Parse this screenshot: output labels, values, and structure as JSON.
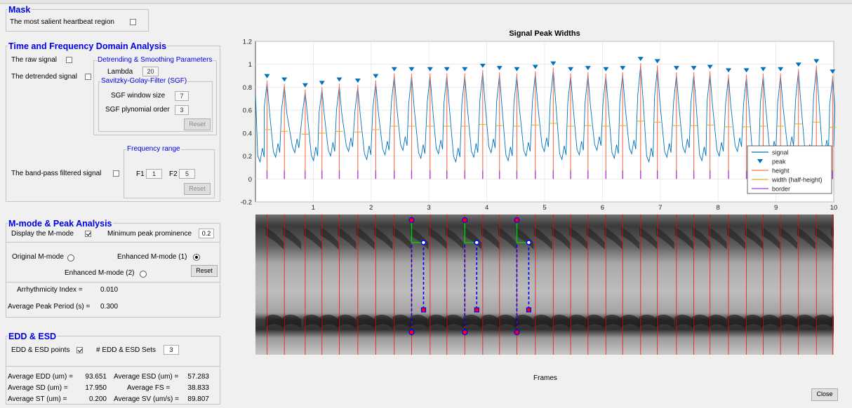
{
  "mask": {
    "title": "Mask",
    "salient_label": "The most salient heartbeat region",
    "salient_checked": false
  },
  "tfa": {
    "title": "Time and Frequency Domain Analysis",
    "raw_label": "The raw signal",
    "raw_checked": false,
    "detrended_label": "The detrended signal",
    "detrended_checked": false,
    "dsp": {
      "title": "Detrending & Smoothing Parameters",
      "lambda_label": "Lambda",
      "lambda_value": "20",
      "sgf": {
        "title": "Savitzky-Golay-Filter (SGF)",
        "window_label": "SGF window size",
        "window_value": "7",
        "order_label": "SGF plynomial order",
        "order_value": "3",
        "reset_label": "Reset"
      }
    },
    "bandpass_label": "The band-pass filtered signal",
    "bandpass_checked": false,
    "freq": {
      "title": "Frequency range",
      "f1_label": "F1",
      "f1_value": "1",
      "f2_label": "F2",
      "f2_value": "5",
      "reset_label": "Reset"
    }
  },
  "mmode": {
    "title": "M-mode & Peak Analysis",
    "display_label": "Display the M-mode",
    "display_checked": true,
    "prominence_label": "Minimum peak prominence",
    "prominence_value": "0.2",
    "original_label": "Original M-mode",
    "enhanced1_label": "Enhanced M-mode (1)",
    "enhanced2_label": "Enhanced M-mode (2)",
    "selected": "enhanced1",
    "reset_label": "Reset",
    "arrhythmicity_label": "Arrhythmicity Index =",
    "arrhythmicity_value": "0.010",
    "period_label": "Average Peak Period (s) =",
    "period_value": "0.300"
  },
  "edd": {
    "title": "EDD & ESD",
    "points_label": "EDD & ESD points",
    "points_checked": true,
    "sets_label": "# EDD & ESD Sets",
    "sets_value": "3",
    "stats": [
      {
        "label": "Average EDD (um) =",
        "value": "93.651"
      },
      {
        "label": "Average ESD (um) =",
        "value": "57.283"
      },
      {
        "label": "Average SD (um) =",
        "value": "17.950"
      },
      {
        "label": "Average FS =",
        "value": "38.833"
      },
      {
        "label": "Average ST (um) =",
        "value": "0.200"
      },
      {
        "label": "Average SV (um/s) =",
        "value": "89.807"
      }
    ]
  },
  "mmode_image": {
    "xlabel": "Frames",
    "marker_color": "#ff0000",
    "edd_line_color": "#0000ff",
    "esd_line_color": "#00cc00"
  },
  "close_label": "Close",
  "chart_data": {
    "type": "line",
    "title": "Signal Peak Widths",
    "xlabel": "",
    "ylabel": "",
    "xlim": [
      0,
      10
    ],
    "ylim": [
      -0.2,
      1.2
    ],
    "xticks": [
      1,
      2,
      3,
      4,
      5,
      6,
      7,
      8,
      9,
      10
    ],
    "yticks": [
      -0.2,
      0,
      0.2,
      0.4,
      0.6,
      0.8,
      1,
      1.2
    ],
    "grid": true,
    "legend_position": "bottom-right",
    "legend": [
      {
        "label": "signal",
        "color": "#0072bd",
        "kind": "line"
      },
      {
        "label": "peak",
        "color": "#0072bd",
        "kind": "triangle"
      },
      {
        "label": "height",
        "color": "#ff6b4a",
        "kind": "line"
      },
      {
        "label": "width (half-height)",
        "color": "#edb120",
        "kind": "line"
      },
      {
        "label": "border",
        "color": "#a23cd4",
        "kind": "line"
      }
    ],
    "peaks": {
      "x": [
        0.2,
        0.5,
        0.86,
        1.15,
        1.45,
        1.77,
        2.08,
        2.4,
        2.7,
        3.02,
        3.31,
        3.62,
        3.93,
        4.22,
        4.52,
        4.84,
        5.15,
        5.45,
        5.75,
        6.06,
        6.35,
        6.66,
        6.95,
        7.28,
        7.58,
        7.86,
        8.18,
        8.49,
        8.78,
        9.08,
        9.39,
        9.7,
        9.98
      ],
      "y": [
        0.86,
        0.83,
        0.78,
        0.8,
        0.83,
        0.82,
        0.86,
        0.92,
        0.92,
        0.92,
        0.92,
        0.92,
        0.95,
        0.93,
        0.92,
        0.94,
        0.97,
        0.92,
        0.93,
        0.92,
        0.93,
        1.01,
        0.99,
        0.93,
        0.93,
        0.94,
        0.91,
        0.91,
        0.92,
        0.92,
        0.96,
        0.99,
        0.9
      ]
    },
    "baseline": 0,
    "half_height_widths": 0.12
  }
}
